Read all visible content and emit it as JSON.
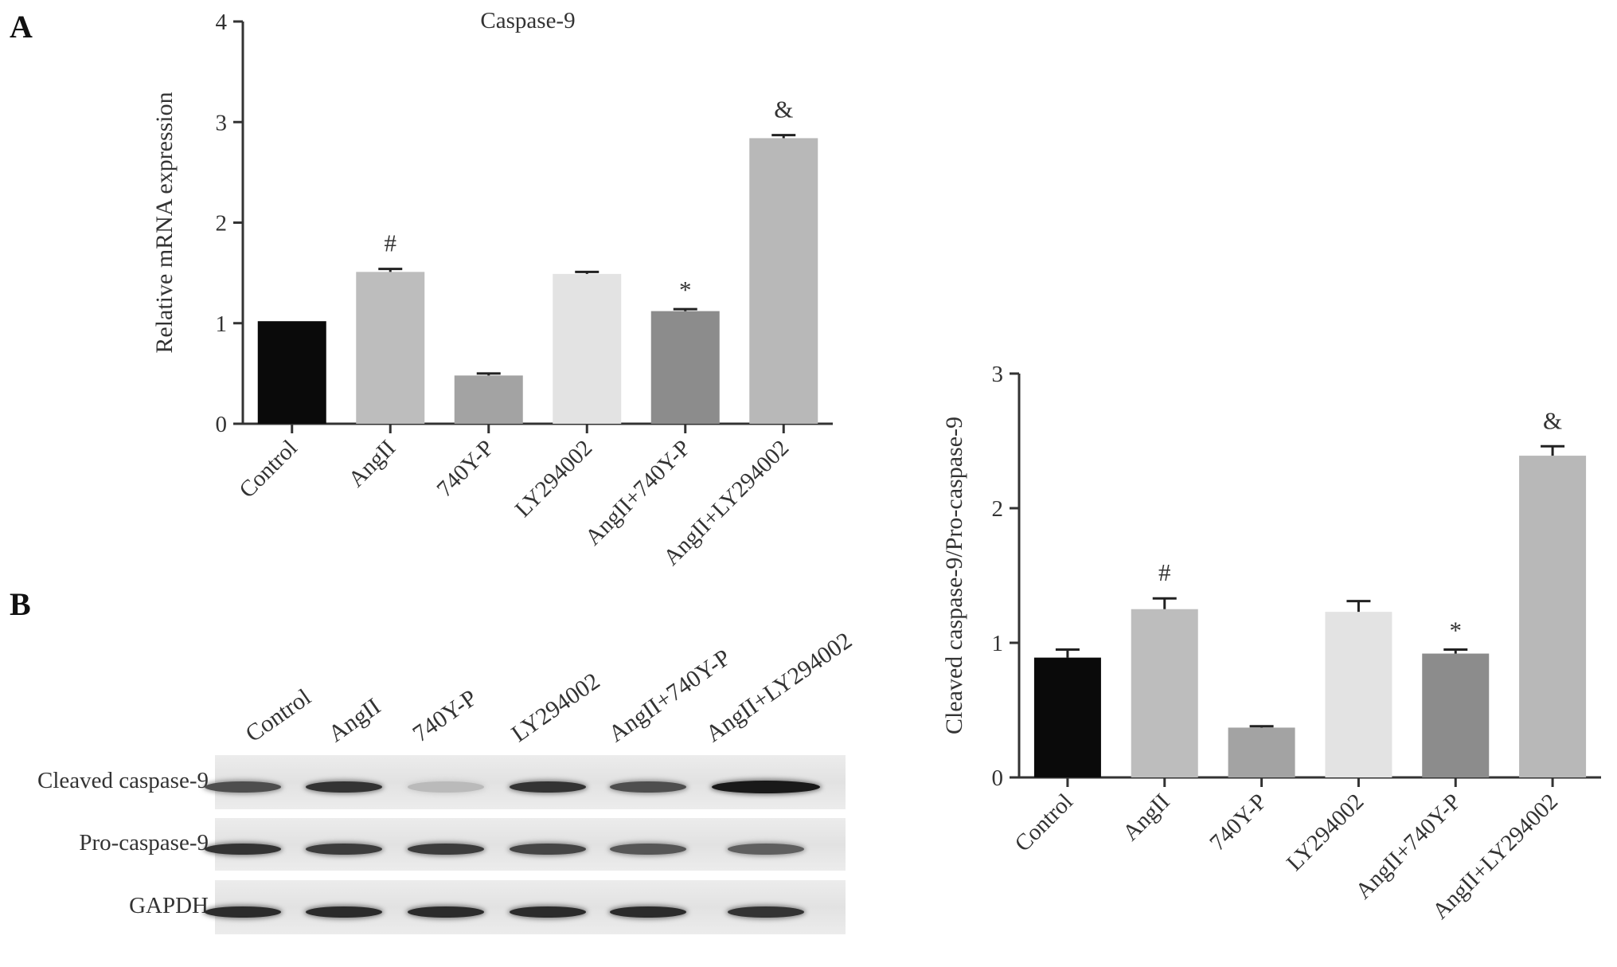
{
  "panel_labels": {
    "a": "A",
    "b": "B"
  },
  "chart_data": [
    {
      "type": "bar",
      "title": "Caspase-9",
      "xlabel": "",
      "ylabel": "Relative mRNA expression",
      "ylim": [
        0,
        4
      ],
      "yticks": [
        "0",
        "1",
        "2",
        "3",
        "4"
      ],
      "grid": false,
      "categories": [
        "Control",
        "AngII",
        "740Y-P",
        "LY294002",
        "AngII+740Y-P",
        "AngII+LY294002"
      ],
      "values": [
        1.02,
        1.51,
        0.48,
        1.49,
        1.12,
        2.84
      ],
      "errors": [
        0.0,
        0.03,
        0.02,
        0.02,
        0.02,
        0.03
      ],
      "annotations": [
        "",
        "#",
        "",
        "",
        "*",
        "&"
      ],
      "colors": [
        "#0a0a0a",
        "#bdbdbd",
        "#a3a3a3",
        "#e3e3e3",
        "#8c8c8c",
        "#b8b8b8"
      ]
    },
    {
      "type": "bar",
      "title": "",
      "xlabel": "",
      "ylabel": "Cleaved caspase-9/Pro-caspase-9",
      "ylim": [
        0,
        3
      ],
      "yticks": [
        "0",
        "1",
        "2",
        "3"
      ],
      "grid": false,
      "categories": [
        "Control",
        "AngII",
        "740Y-P",
        "LY294002",
        "AngII+740Y-P",
        "AngII+LY294002"
      ],
      "values": [
        0.89,
        1.25,
        0.37,
        1.23,
        0.92,
        2.39
      ],
      "errors": [
        0.06,
        0.08,
        0.01,
        0.08,
        0.03,
        0.07
      ],
      "annotations": [
        "",
        "#",
        "",
        "",
        "*",
        "&"
      ],
      "colors": [
        "#0a0a0a",
        "#bdbdbd",
        "#a3a3a3",
        "#e3e3e3",
        "#8c8c8c",
        "#b8b8b8"
      ]
    }
  ],
  "western_blot": {
    "lanes": [
      "Control",
      "AngII",
      "740Y-P",
      "LY294002",
      "AngII+740Y-P",
      "AngII+LY294002"
    ],
    "rows": [
      {
        "label": "Cleaved caspase-9",
        "intensity": [
          0.7,
          0.85,
          0.08,
          0.85,
          0.7,
          1.0
        ]
      },
      {
        "label": "Pro-caspase-9",
        "intensity": [
          0.85,
          0.8,
          0.8,
          0.75,
          0.65,
          0.6
        ]
      },
      {
        "label": "GAPDH",
        "intensity": [
          0.9,
          0.9,
          0.9,
          0.9,
          0.9,
          0.85
        ]
      }
    ]
  }
}
